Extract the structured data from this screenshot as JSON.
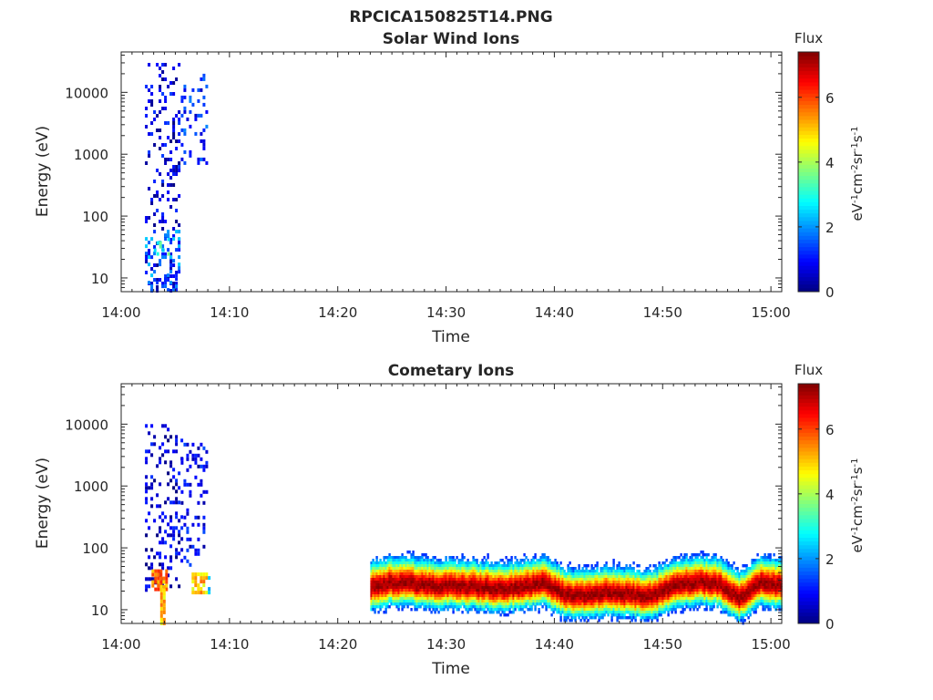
{
  "figure": {
    "title": "RPCICA150825T14.PNG"
  },
  "colorbar": {
    "title": "Flux",
    "label_parts": [
      "eV",
      "-1",
      "cm",
      "-2",
      "sr",
      "-1",
      "s",
      "-1"
    ],
    "range": [
      0,
      7.4
    ],
    "ticks": [
      0,
      2,
      4,
      6
    ],
    "tick_labels": [
      "0",
      "2",
      "4",
      "6"
    ],
    "colormap": "jet"
  },
  "chart_data": [
    {
      "type": "heatmap",
      "title": "Solar Wind Ions",
      "xlabel": "Time",
      "ylabel": "Energy (eV)",
      "x_range_minutes": [
        0,
        61
      ],
      "x_ticks": [
        0,
        10,
        20,
        30,
        40,
        50,
        60
      ],
      "x_tick_labels": [
        "14:00",
        "14:10",
        "14:20",
        "14:30",
        "14:40",
        "14:50",
        "15:00"
      ],
      "y_scale": "log",
      "y_range": [
        6,
        45000
      ],
      "y_ticks": [
        10,
        100,
        1000,
        10000
      ],
      "y_tick_labels": [
        "10",
        "100",
        "1000",
        "10000"
      ],
      "features": [
        {
          "t_start": 2.2,
          "t_end": 5.3,
          "e_min": 6,
          "e_max": 30000,
          "flux": 0.7,
          "pattern": "sparse"
        },
        {
          "t_start": 2.2,
          "t_end": 5.3,
          "e_min": 6,
          "e_max": 60,
          "flux": 1.8,
          "pattern": "sparse"
        },
        {
          "t_start": 3.0,
          "t_end": 4.6,
          "e_min": 25,
          "e_max": 45,
          "flux": 3.0,
          "pattern": "sparse"
        },
        {
          "t_start": 5.5,
          "t_end": 8.0,
          "e_min": 700,
          "e_max": 20000,
          "flux": 1.2,
          "pattern": "sparse"
        }
      ]
    },
    {
      "type": "heatmap",
      "title": "Cometary Ions",
      "xlabel": "Time",
      "ylabel": "Energy (eV)",
      "x_range_minutes": [
        0,
        61
      ],
      "x_ticks": [
        0,
        10,
        20,
        30,
        40,
        50,
        60
      ],
      "x_tick_labels": [
        "14:00",
        "14:10",
        "14:20",
        "14:30",
        "14:40",
        "14:50",
        "15:00"
      ],
      "y_scale": "log",
      "y_range": [
        6,
        45000
      ],
      "y_ticks": [
        10,
        100,
        1000,
        10000
      ],
      "y_tick_labels": [
        "10",
        "100",
        "1000",
        "10000"
      ],
      "features": [
        {
          "t_start": 2.2,
          "t_end": 5.5,
          "e_min": 20,
          "e_max": 10000,
          "flux": 0.6,
          "pattern": "sparse"
        },
        {
          "t_start": 2.8,
          "t_end": 4.2,
          "e_min": 20,
          "e_max": 45,
          "flux": 5.5,
          "pattern": "dense"
        },
        {
          "t_start": 3.6,
          "t_end": 4.1,
          "e_min": 6,
          "e_max": 25,
          "flux": 5.0,
          "pattern": "dense"
        },
        {
          "t_start": 6.5,
          "t_end": 7.9,
          "e_min": 20,
          "e_max": 40,
          "flux": 5.0,
          "pattern": "dense"
        },
        {
          "t_start": 5.5,
          "t_end": 8.0,
          "e_min": 50,
          "e_max": 5000,
          "flux": 0.8,
          "pattern": "sparse"
        },
        {
          "t_start": 8.0,
          "t_end": 8.2,
          "e_min": 6,
          "e_max": 60,
          "flux": 2.5,
          "pattern": "sparse"
        }
      ],
      "band": {
        "t_start": 23.0,
        "t_end": 61.0,
        "peak_flux": 7.2,
        "center_energy_eV": [
          [
            23.0,
            24
          ],
          [
            25.0,
            28
          ],
          [
            27.0,
            27
          ],
          [
            29.0,
            25
          ],
          [
            31.0,
            25
          ],
          [
            33.0,
            24
          ],
          [
            35.0,
            22
          ],
          [
            37.0,
            24
          ],
          [
            39.0,
            28
          ],
          [
            41.0,
            18
          ],
          [
            43.0,
            17
          ],
          [
            45.0,
            20
          ],
          [
            47.0,
            18
          ],
          [
            49.0,
            17
          ],
          [
            51.0,
            26
          ],
          [
            53.0,
            29
          ],
          [
            55.0,
            27
          ],
          [
            57.0,
            16
          ],
          [
            59.0,
            28
          ],
          [
            61.0,
            26
          ]
        ]
      }
    }
  ]
}
